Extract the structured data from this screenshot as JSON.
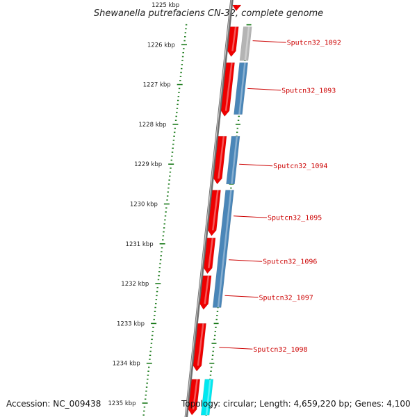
{
  "title": "Shewanella putrefaciens CN-32, complete genome",
  "footer": {
    "accession": "Accession: NC_009438",
    "topology": "Topology: circular; Length: 4,659,220 bp; Genes: 4,100"
  },
  "axis": {
    "unit": "kbp",
    "range_kbp": [
      1225,
      1235
    ],
    "tick_labels": [
      "1225 kbp",
      "1226 kbp",
      "1227 kbp",
      "1228 kbp",
      "1229 kbp",
      "1230 kbp",
      "1231 kbp",
      "1232 kbp",
      "1233 kbp",
      "1234 kbp",
      "1235 kbp"
    ]
  },
  "colors": {
    "cds": "#ee0000",
    "gene_gray": "#b4b4b4",
    "gene_blue": "#4a86b8",
    "gene_cyan": "#00e8f0",
    "backbone": "#777777",
    "ticks": "#1a7a1a",
    "label": "#cc0000"
  },
  "labels": [
    {
      "text": "Sputcn32_1092",
      "kbp": 1225.9
    },
    {
      "text": "Sputcn32_1093",
      "kbp": 1227.1
    },
    {
      "text": "Sputcn32_1094",
      "kbp": 1229.0
    },
    {
      "text": "Sputcn32_1095",
      "kbp": 1230.3
    },
    {
      "text": "Sputcn32_1096",
      "kbp": 1231.4
    },
    {
      "text": "Sputcn32_1097",
      "kbp": 1232.3
    },
    {
      "text": "Sputcn32_1098",
      "kbp": 1233.6
    }
  ],
  "features": [
    {
      "track": "cds",
      "color": "cds",
      "start": 1225.0,
      "end": 1225.15
    },
    {
      "track": "cds",
      "color": "cds",
      "start": 1225.55,
      "end": 1226.3
    },
    {
      "track": "gene",
      "color": "gene_gray",
      "start": 1225.55,
      "end": 1226.4
    },
    {
      "track": "cds",
      "color": "cds",
      "start": 1226.45,
      "end": 1227.8
    },
    {
      "track": "gene",
      "color": "gene_blue",
      "start": 1226.45,
      "end": 1227.75
    },
    {
      "track": "cds",
      "color": "cds",
      "start": 1228.3,
      "end": 1229.5
    },
    {
      "track": "gene",
      "color": "gene_blue",
      "start": 1228.3,
      "end": 1229.5
    },
    {
      "track": "cds",
      "color": "cds",
      "start": 1229.65,
      "end": 1230.8
    },
    {
      "track": "gene",
      "color": "gene_blue",
      "start": 1229.65,
      "end": 1232.6
    },
    {
      "track": "cds",
      "color": "cds",
      "start": 1230.85,
      "end": 1231.75
    },
    {
      "track": "cds",
      "color": "cds",
      "start": 1231.8,
      "end": 1232.65
    },
    {
      "track": "cds",
      "color": "cds",
      "start": 1233.0,
      "end": 1234.2
    },
    {
      "track": "cds",
      "color": "cds",
      "start": 1234.4,
      "end": 1235.3
    },
    {
      "track": "gene",
      "color": "gene_cyan",
      "start": 1234.4,
      "end": 1235.3
    }
  ]
}
